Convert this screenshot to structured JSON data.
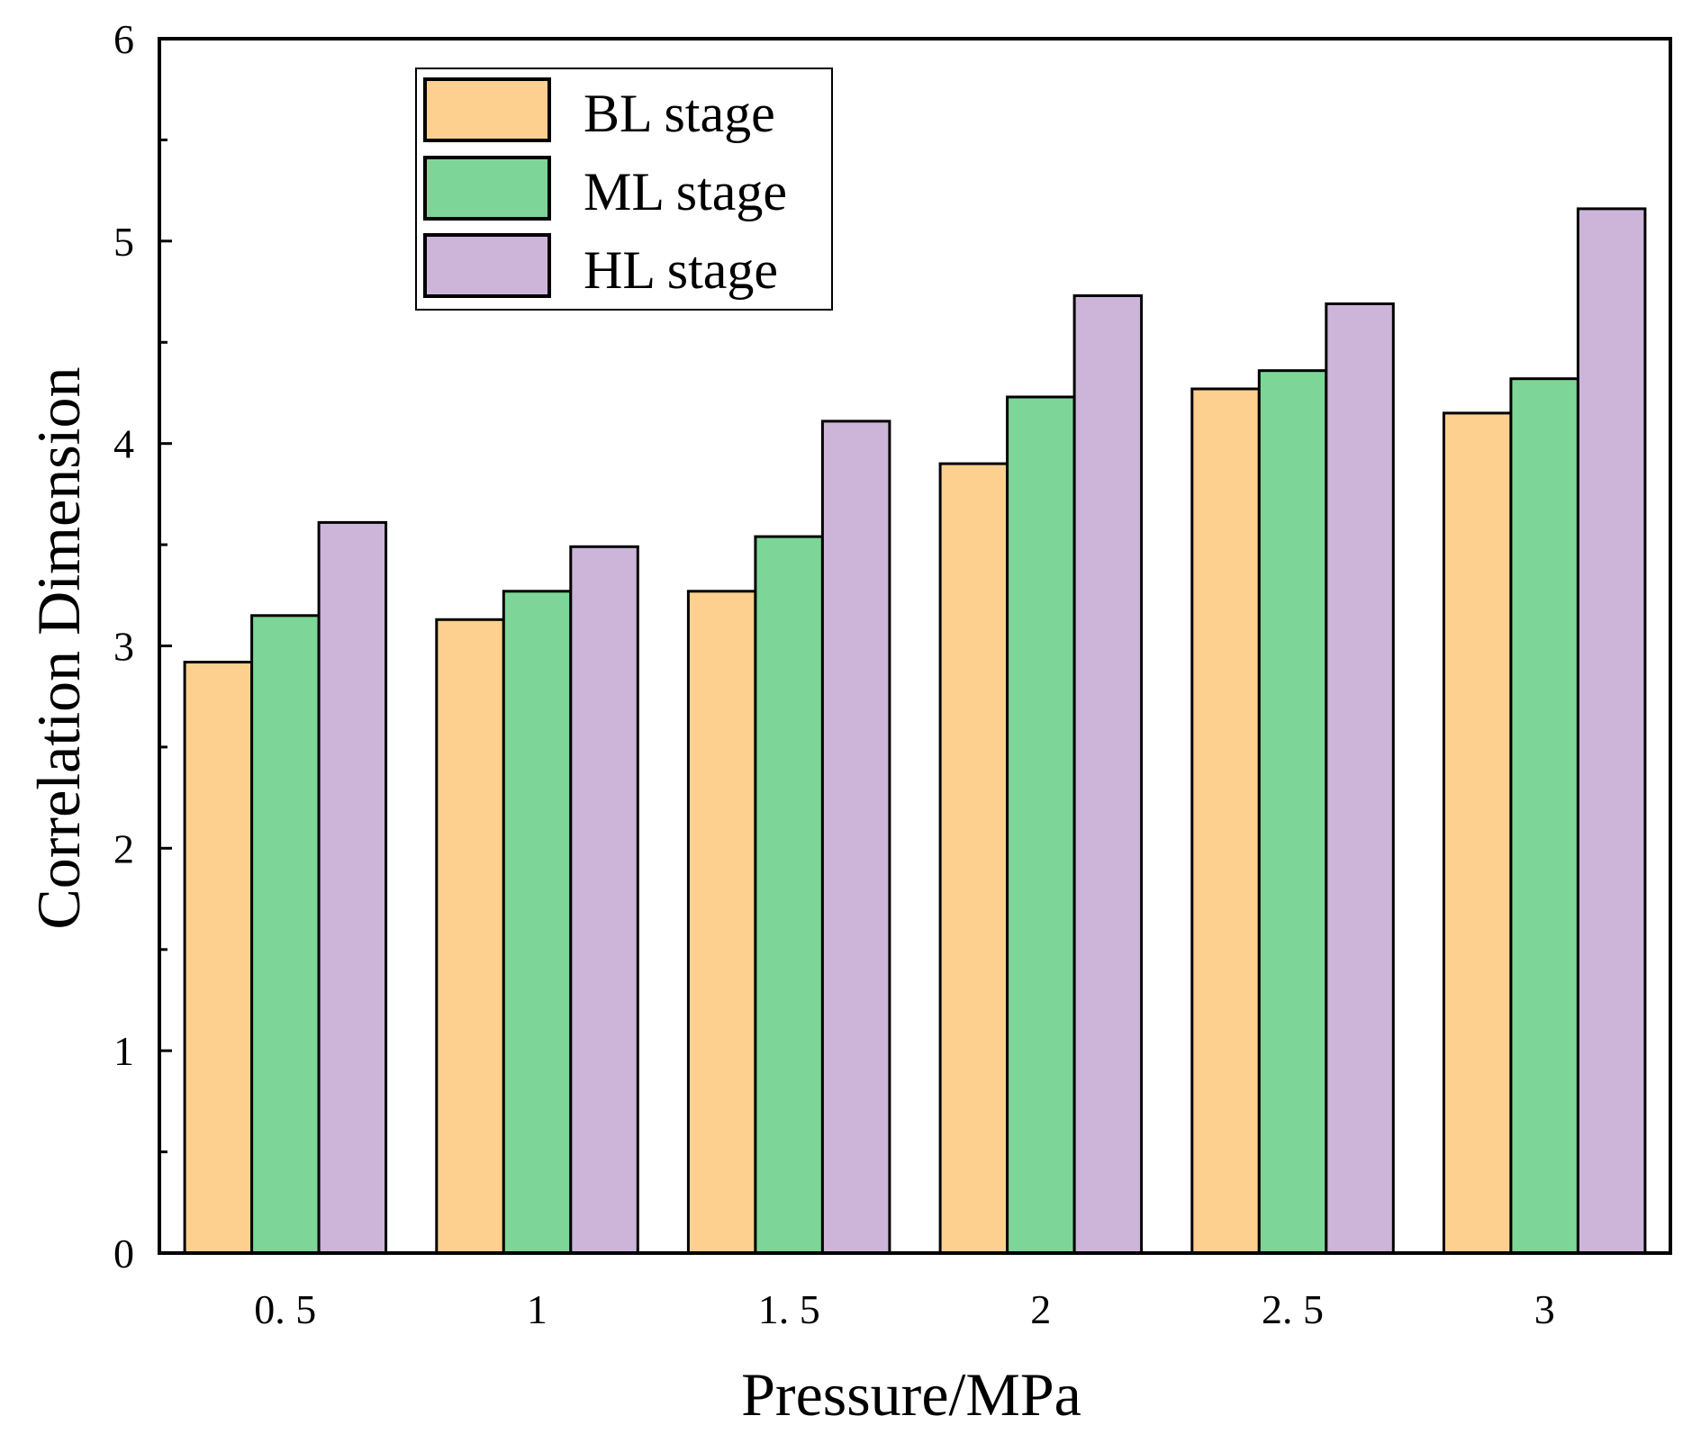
{
  "chart_data": {
    "type": "bar",
    "title": "",
    "xlabel": "Pressure/MPa",
    "ylabel": "Correlation Dimension",
    "categories": [
      "0. 5",
      "1",
      "1. 5",
      "2",
      "2. 5",
      "3"
    ],
    "ylim": [
      0,
      6
    ],
    "yticks": [
      "0",
      "1",
      "2",
      "3",
      "4",
      "5",
      "6"
    ],
    "legend_position": "top-left",
    "series": [
      {
        "name": "BL stage",
        "color": "#FDD08F",
        "values": [
          2.92,
          3.13,
          3.27,
          3.9,
          4.27,
          4.15
        ]
      },
      {
        "name": "ML stage",
        "color": "#7DD698",
        "values": [
          3.15,
          3.27,
          3.54,
          4.23,
          4.36,
          4.32
        ]
      },
      {
        "name": "HL stage",
        "color": "#CDB5DA",
        "values": [
          3.61,
          3.49,
          4.11,
          4.73,
          4.69,
          5.16
        ]
      }
    ]
  }
}
